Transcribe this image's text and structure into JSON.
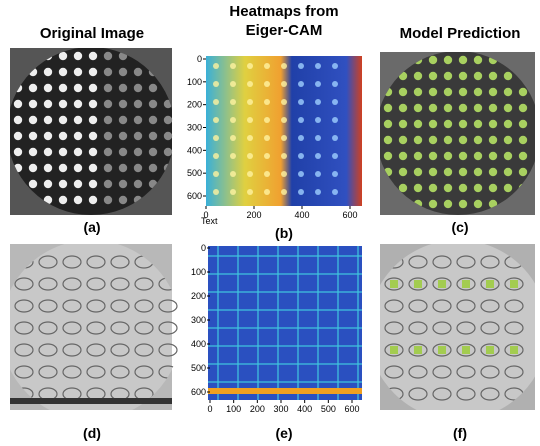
{
  "titles": {
    "original": "Original Image",
    "heatmap": [
      "Heatmaps from",
      "Eiger-CAM"
    ],
    "prediction": "Model Prediction"
  },
  "panels": {
    "a": "(a)",
    "b": "(b)",
    "c": "(c)",
    "d": "(d)",
    "e": "(e)",
    "f": "(f)"
  },
  "heatmap_b": {
    "yticks": [
      0,
      100,
      200,
      300,
      400,
      500,
      600
    ],
    "xticks": [
      0,
      200,
      400,
      600
    ],
    "xlabel": "Text"
  },
  "heatmap_e": {
    "yticks": [
      0,
      100,
      200,
      300,
      400,
      500,
      600
    ],
    "xticks": [
      0,
      100,
      200,
      300,
      400,
      500,
      600
    ]
  }
}
